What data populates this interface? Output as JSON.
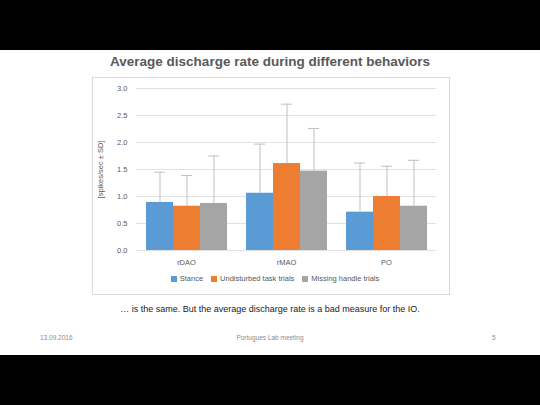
{
  "chart_data": {
    "type": "bar",
    "title": "Average discharge rate during different behaviors",
    "y_label": "[spikes/sec ± SD]",
    "categories": [
      "rDAO",
      "rMAO",
      "PO"
    ],
    "series": [
      {
        "name": "Stance",
        "color": "#5b9bd5",
        "values": [
          0.89,
          1.06,
          0.71
        ],
        "errors": [
          0.56,
          0.91,
          0.91
        ]
      },
      {
        "name": "Undisturbed task trials",
        "color": "#ed7d31",
        "values": [
          0.82,
          1.61,
          1.0
        ],
        "errors": [
          0.57,
          1.1,
          0.56
        ]
      },
      {
        "name": "Missing handle trials",
        "color": "#a5a5a5",
        "values": [
          0.87,
          1.47,
          0.82
        ],
        "errors": [
          0.88,
          0.79,
          0.85
        ]
      }
    ],
    "ylim": [
      0,
      3
    ],
    "yticks": [
      0,
      0.5,
      1,
      1.5,
      2,
      2.5,
      3
    ],
    "grid": true,
    "legend": "bottom",
    "caption": "… is the same. But the average discharge rate is a bad measure for the IO.",
    "footer": {
      "date": "13.09.2016",
      "event": "Portugues Lab meeting",
      "page": 5
    }
  }
}
